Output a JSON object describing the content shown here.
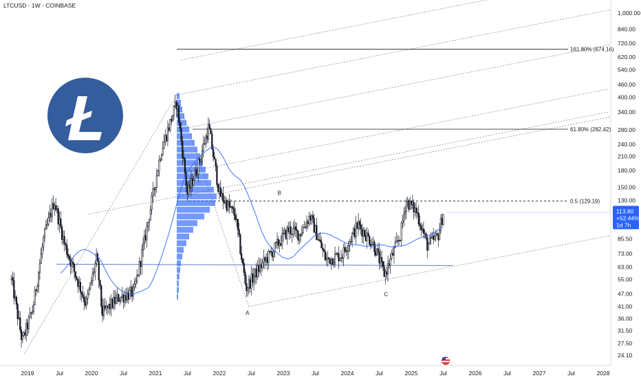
{
  "header": {
    "symbol": "LTCUSD · 1W · COINBASE"
  },
  "chart_data": {
    "type": "candlestick",
    "x_ticks": [
      "2019",
      "Jul",
      "2020",
      "Jul",
      "2021",
      "Jul",
      "2022",
      "Jul",
      "2023",
      "Jul",
      "2024",
      "Jul",
      "2025",
      "Jul",
      "2026",
      "Jul",
      "2027",
      "Jul",
      "2028"
    ],
    "y_ticks": [
      24.1,
      27.5,
      31.5,
      36.0,
      41.0,
      47.0,
      55.0,
      63.0,
      73.0,
      85.5,
      130.0,
      150.0,
      180.0,
      210.0,
      240.0,
      280.0,
      340.0,
      400.0,
      460.0,
      540.0,
      620.0,
      720.0,
      840.0,
      1000.0
    ],
    "y_tick_labels": [
      "24.10",
      "27.50",
      "31.50",
      "36.00",
      "41.00",
      "47.00",
      "55.00",
      "63.00",
      "73.00",
      "85.50",
      "130.00",
      "150.00",
      "180.00",
      "210.00",
      "240.00",
      "280.00",
      "340.00",
      "400.00",
      "460.00",
      "540.00",
      "620.00",
      "720.00",
      "840.00",
      "1,000.00"
    ],
    "y_scale": "log",
    "last_price": {
      "value": 113.8,
      "label": "113.80",
      "change": "+52.44%",
      "countdown": "1d 7h",
      "color": "#2962ff"
    },
    "fib_levels": [
      {
        "label": "161.80% (674.16)",
        "value": 674.16
      },
      {
        "label": "61.80% (282.42)",
        "value": 282.42
      },
      {
        "label": "0.5 (129.19)",
        "value": 129.19
      }
    ],
    "points": [
      {
        "label": "A",
        "date": "2022-06",
        "value": 41
      },
      {
        "label": "B",
        "date": "2022-12",
        "value": 130
      },
      {
        "label": "C",
        "date": "2024-08",
        "value": 51
      }
    ],
    "approx_weekly_path": [
      [
        "2018-10",
        55
      ],
      [
        "2018-12",
        28
      ],
      [
        "2019-02",
        40
      ],
      [
        "2019-04",
        85
      ],
      [
        "2019-06",
        130
      ],
      [
        "2019-08",
        80
      ],
      [
        "2019-10",
        58
      ],
      [
        "2019-12",
        42
      ],
      [
        "2020-02",
        70
      ],
      [
        "2020-03",
        38
      ],
      [
        "2020-06",
        45
      ],
      [
        "2020-09",
        48
      ],
      [
        "2020-11",
        85
      ],
      [
        "2021-01",
        160
      ],
      [
        "2021-02",
        220
      ],
      [
        "2021-05",
        380
      ],
      [
        "2021-07",
        140
      ],
      [
        "2021-09",
        190
      ],
      [
        "2021-11",
        290
      ],
      [
        "2022-01",
        140
      ],
      [
        "2022-04",
        110
      ],
      [
        "2022-06",
        50
      ],
      [
        "2022-08",
        60
      ],
      [
        "2022-11",
        75
      ],
      [
        "2023-02",
        95
      ],
      [
        "2023-04",
        90
      ],
      [
        "2023-06",
        110
      ],
      [
        "2023-09",
        68
      ],
      [
        "2023-12",
        72
      ],
      [
        "2024-03",
        100
      ],
      [
        "2024-06",
        80
      ],
      [
        "2024-08",
        58
      ],
      [
        "2024-11",
        90
      ],
      [
        "2024-12",
        130
      ],
      [
        "2025-02",
        115
      ],
      [
        "2025-04",
        80
      ],
      [
        "2025-06",
        88
      ],
      [
        "2025-07",
        113.8
      ]
    ],
    "colors": {
      "ma_line": "#2962ff",
      "volume_profile": "#2962ff",
      "support_line": "#5b7fc7",
      "logo": "#345d9d"
    }
  }
}
